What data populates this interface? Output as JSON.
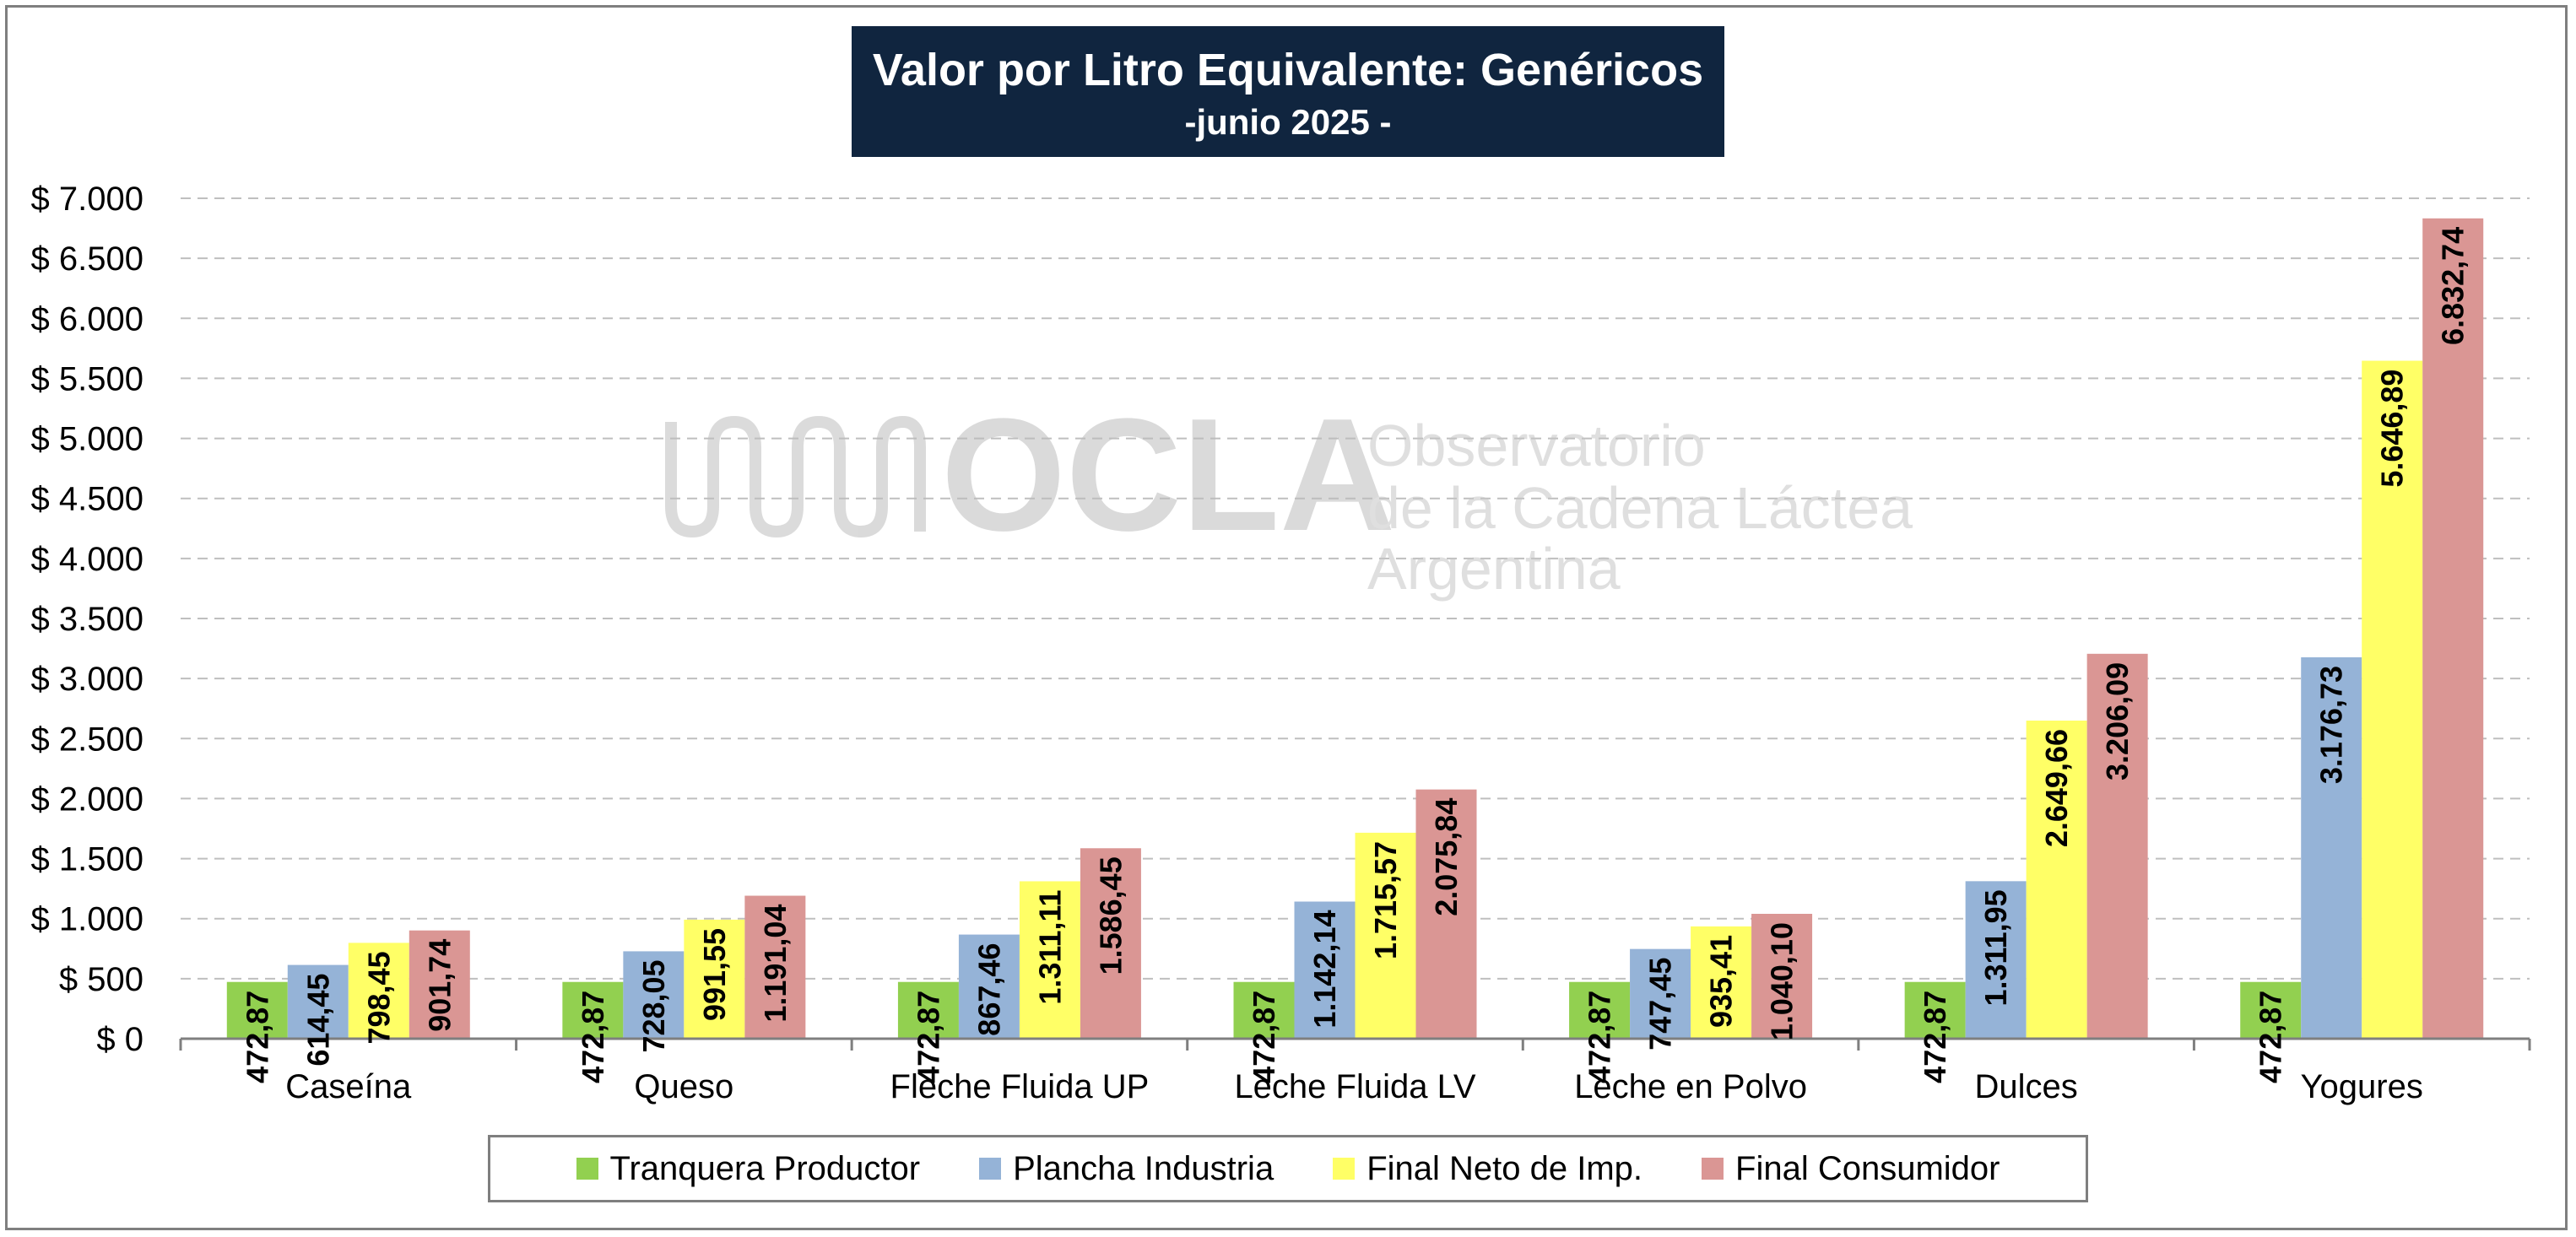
{
  "chart_data": {
    "type": "bar",
    "title": "Valor por Litro Equivalente: Genéricos",
    "subtitle": "-junio 2025 -",
    "categories": [
      "Caseína",
      "Queso",
      "Fleche Fluida UP",
      "Leche Fluida LV",
      "Leche en Polvo",
      "Dulces",
      "Yogures"
    ],
    "series": [
      {
        "name": "Tranquera Productor",
        "color": "#92d050",
        "values": [
          472.87,
          472.87,
          472.87,
          472.87,
          472.87,
          472.87,
          472.87
        ],
        "labels": [
          "472,87",
          "472,87",
          "472,87",
          "472,87",
          "472,87",
          "472,87",
          "472,87"
        ]
      },
      {
        "name": "Plancha Industria",
        "color": "#95b3d7",
        "values": [
          614.45,
          728.05,
          867.46,
          1142.14,
          747.45,
          1311.95,
          3176.73
        ],
        "labels": [
          "614,45",
          "728,05",
          "867,46",
          "1.142,14",
          "747,45",
          "1.311,95",
          "3.176,73"
        ]
      },
      {
        "name": "Final Neto de Imp.",
        "color": "#ffff66",
        "values": [
          798.45,
          991.55,
          1311.11,
          1715.57,
          935.41,
          2649.66,
          5646.89
        ],
        "labels": [
          "798,45",
          "991,55",
          "1.311,11",
          "1.715,57",
          "935,41",
          "2.649,66",
          "5.646,89"
        ]
      },
      {
        "name": "Final Consumidor",
        "color": "#da9694",
        "values": [
          901.74,
          1191.04,
          1586.45,
          2075.84,
          1040.1,
          3206.09,
          6832.74
        ],
        "labels": [
          "901,74",
          "1.191,04",
          "1.586,45",
          "2.075,84",
          "1.040,10",
          "3.206,09",
          "6.832,74"
        ]
      }
    ],
    "ylim": [
      0,
      7000
    ],
    "yticks": [
      0,
      500,
      1000,
      1500,
      2000,
      2500,
      3000,
      3500,
      4000,
      4500,
      5000,
      5500,
      6000,
      6500,
      7000
    ],
    "ytick_labels": [
      "$ 0",
      "$ 500",
      "$ 1.000",
      "$ 1.500",
      "$ 2.000",
      "$ 2.500",
      "$ 3.000",
      "$ 3.500",
      "$ 4.000",
      "$ 4.500",
      "$ 5.000",
      "$ 5.500",
      "$ 6.000",
      "$ 6.500",
      "$ 7.000"
    ],
    "grid": true,
    "legend_position": "bottom"
  },
  "watermark": {
    "logo": "OCLA",
    "line1": "Observatorio",
    "line2": "de la Cadena Láctea",
    "line3": "Argentina"
  }
}
